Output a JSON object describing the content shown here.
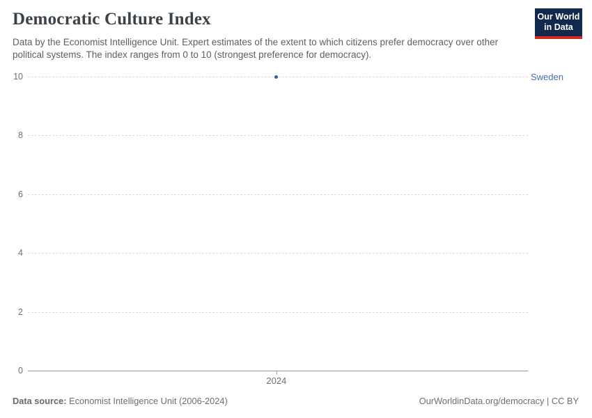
{
  "header": {
    "title": "Democratic Culture Index",
    "subtitle": "Data by the Economist Intelligence Unit. Expert estimates of the extent to which citizens prefer democracy over other political systems. The index ranges from 0 to 10 (strongest preference for democracy).",
    "logo": {
      "line1": "Our World",
      "line2": "in Data",
      "bg_color": "#12294d",
      "stripe_color": "#ce2a26"
    }
  },
  "chart_data": {
    "type": "scatter",
    "series": [
      {
        "name": "Sweden",
        "x": [
          2024
        ],
        "values": [
          10
        ]
      }
    ],
    "title": "Democratic Culture Index",
    "xlabel": "",
    "ylabel": "",
    "ylim": [
      0,
      10
    ],
    "yticks": [
      0,
      2,
      4,
      6,
      8,
      10
    ],
    "xticks": [
      2024
    ],
    "xtick_fracs": [
      0.497
    ],
    "grid": true,
    "legend_position": "right-of-point",
    "point_color": "#3d5c8f",
    "series_label_color": "#4c6ea8"
  },
  "footer": {
    "source_label": "Data source:",
    "source_text": " Economist Intelligence Unit (2006-2024)",
    "attribution": "OurWorldinData.org/democracy | CC BY"
  }
}
